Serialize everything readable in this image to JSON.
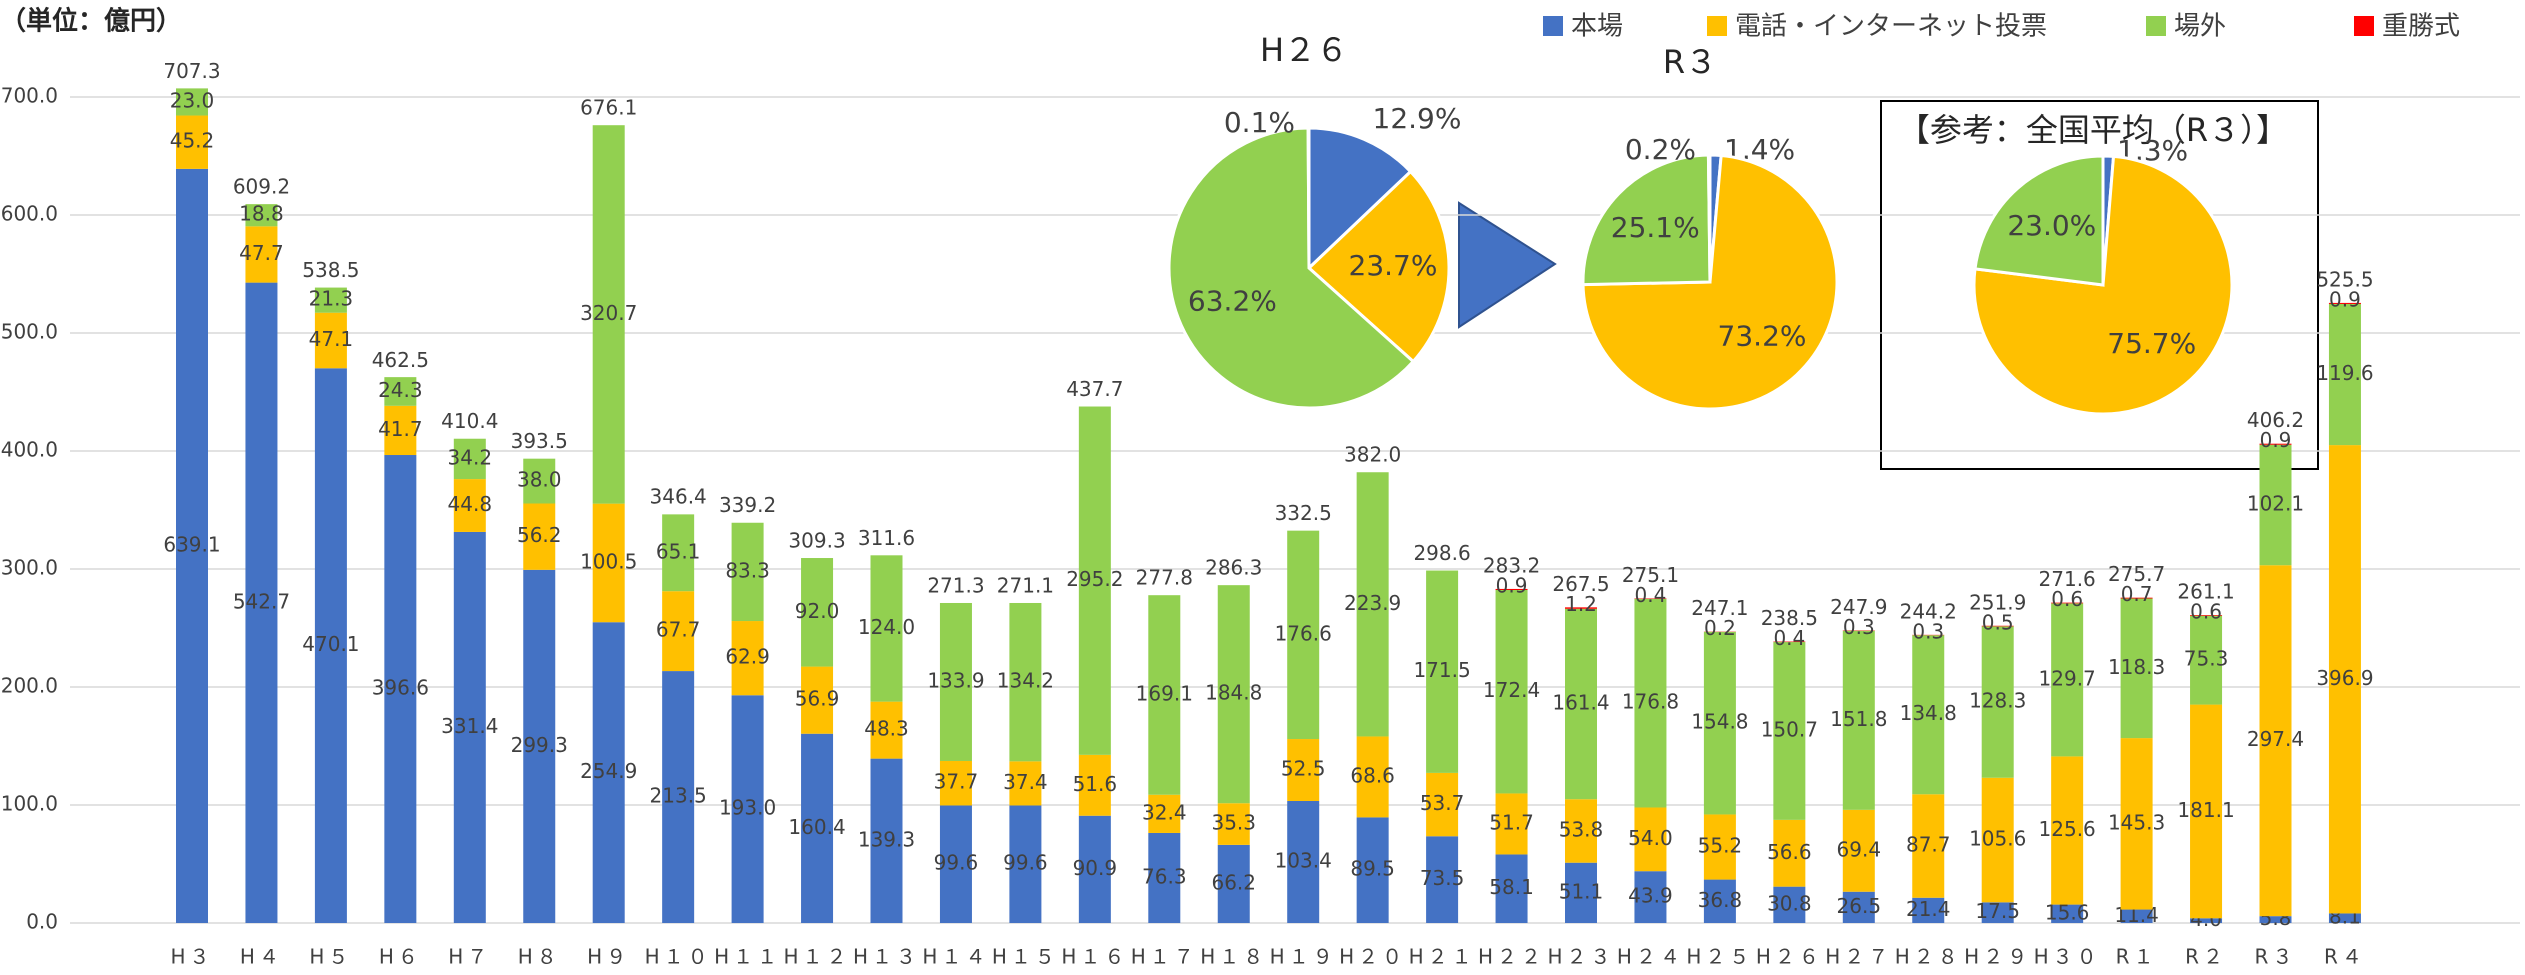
{
  "chart_data": [
    {
      "type": "bar",
      "stacked": true,
      "unit_label": "（単位：億円）",
      "categories": [
        "H３",
        "H４",
        "H５",
        "H６",
        "H７",
        "H８",
        "H９",
        "H１０",
        "H１１",
        "H１２",
        "H１３",
        "H１４",
        "H１５",
        "H１６",
        "H１７",
        "H１８",
        "H１９",
        "H２０",
        "H２１",
        "H２２",
        "H２３",
        "H２４",
        "H２５",
        "H２６",
        "H２７",
        "H２８",
        "H２９",
        "H３０",
        "R１",
        "R２",
        "R３",
        "R４"
      ],
      "series": [
        {
          "name": "本場",
          "color": "#4472c4",
          "values": [
            639.1,
            542.7,
            470.1,
            396.6,
            331.4,
            299.3,
            254.9,
            213.5,
            193.0,
            160.4,
            139.3,
            99.6,
            99.6,
            90.9,
            76.3,
            66.2,
            103.4,
            89.5,
            73.5,
            58.1,
            51.1,
            43.9,
            36.8,
            30.8,
            26.5,
            21.4,
            17.5,
            15.6,
            11.4,
            4.0,
            5.8,
            8.1
          ],
          "value_labels": [
            "639.1",
            "542.7",
            "470.1",
            "396.6",
            "331.4",
            "299.3",
            "254.9",
            "213.5",
            "193.0",
            "160.4",
            "139.3",
            "99.6",
            "99.6",
            "90.9",
            "76.3",
            "66.2",
            "103.4",
            "89.5",
            "73.5",
            "58.1",
            "51.1",
            "43.9",
            "36.8",
            "30.8",
            "26.5",
            "21.4",
            "17.5",
            "15.6",
            "11.4",
            "4.0",
            "5.8",
            "8.1"
          ]
        },
        {
          "name": "電話・インターネット投票",
          "color": "#ffc000",
          "values": [
            45.2,
            47.7,
            47.1,
            41.7,
            44.8,
            56.2,
            100.5,
            67.7,
            62.9,
            56.9,
            48.3,
            37.7,
            37.4,
            51.6,
            32.4,
            35.3,
            52.5,
            68.6,
            53.7,
            51.7,
            53.8,
            54.0,
            55.2,
            56.6,
            69.4,
            87.7,
            105.6,
            125.6,
            145.3,
            181.1,
            297.4,
            396.9
          ],
          "value_labels": [
            "45.2",
            "47.7",
            "47.1",
            "41.7",
            "44.8",
            "56.2",
            "100.5",
            "67.7",
            "62.9",
            "56.9",
            "48.3",
            "37.7",
            "37.4",
            "51.6",
            "32.4",
            "35.3",
            "52.5",
            "68.6",
            "53.7",
            "51.7",
            "53.8",
            "54.0",
            "55.2",
            "56.6",
            "69.4",
            "87.7",
            "105.6",
            "125.6",
            "145.3",
            "181.1",
            "297.4",
            "396.9"
          ]
        },
        {
          "name": "場外",
          "color": "#92d050",
          "values": [
            23.0,
            18.8,
            21.3,
            24.3,
            34.2,
            38.0,
            320.7,
            65.1,
            83.3,
            92.0,
            124.0,
            133.9,
            134.2,
            295.2,
            169.1,
            184.8,
            176.6,
            223.9,
            171.5,
            172.4,
            161.4,
            176.8,
            154.8,
            150.7,
            151.8,
            134.8,
            128.3,
            129.7,
            118.3,
            75.3,
            102.1,
            119.6
          ],
          "value_labels": [
            "23.0",
            "18.8",
            "21.3",
            "24.3",
            "34.2",
            "38.0",
            "320.7",
            "65.1",
            "83.3",
            "92.0",
            "124.0",
            "133.9",
            "134.2",
            "295.2",
            "169.1",
            "184.8",
            "176.6",
            "223.9",
            "171.5",
            "172.4",
            "161.4",
            "176.8",
            "154.8",
            "150.7",
            "151.8",
            "134.8",
            "128.3",
            "129.7",
            "118.3",
            "75.3",
            "102.1",
            "119.6"
          ]
        },
        {
          "name": "重勝式",
          "color": "#ff0000",
          "values": [
            null,
            null,
            null,
            null,
            null,
            null,
            null,
            null,
            null,
            null,
            null,
            null,
            null,
            null,
            null,
            null,
            null,
            null,
            null,
            0.9,
            1.2,
            0.4,
            0.2,
            0.4,
            0.3,
            0.3,
            0.5,
            0.6,
            0.7,
            0.6,
            0.9,
            0.9
          ],
          "value_labels": [
            null,
            null,
            null,
            null,
            null,
            null,
            null,
            null,
            null,
            null,
            null,
            null,
            null,
            null,
            null,
            null,
            null,
            null,
            null,
            "0.9",
            "1.2",
            "0.4",
            "0.2",
            "0.4",
            "0.3",
            "0.3",
            "0.5",
            "0.6",
            "0.7",
            "0.6",
            "0.9",
            "0.9"
          ]
        }
      ],
      "totals": {
        "values": [
          707.3,
          609.2,
          538.5,
          462.5,
          410.4,
          393.5,
          676.1,
          346.4,
          339.2,
          309.3,
          311.6,
          271.3,
          271.1,
          437.7,
          277.8,
          286.3,
          332.5,
          382.0,
          298.6,
          283.2,
          267.5,
          275.1,
          247.1,
          238.5,
          247.9,
          244.2,
          251.9,
          271.6,
          275.7,
          261.1,
          406.2,
          525.5
        ],
        "value_labels": [
          "707.3",
          "609.2",
          "538.5",
          "462.5",
          "410.4",
          "393.5",
          "676.1",
          "346.4",
          "339.2",
          "309.3",
          "311.6",
          "271.3",
          "271.1",
          "437.7",
          "277.8",
          "286.3",
          "332.5",
          "382.0",
          "298.6",
          "283.2",
          "267.5",
          "275.1",
          "247.1",
          "238.5",
          "247.9",
          "244.2",
          "251.9",
          "271.6",
          "275.7",
          "261.1",
          "406.2",
          "525.5"
        ]
      },
      "ylim": [
        0,
        750
      ],
      "yticks": [
        {
          "value": 0,
          "label": "0.0"
        },
        {
          "value": 100,
          "label": "100.0"
        },
        {
          "value": 200,
          "label": "200.0"
        },
        {
          "value": 300,
          "label": "300.0"
        },
        {
          "value": 400,
          "label": "400.0"
        },
        {
          "value": 500,
          "label": "500.0"
        },
        {
          "value": 600,
          "label": "600.0"
        },
        {
          "value": 700,
          "label": "700.0"
        }
      ],
      "grid": true,
      "legend": "top-right"
    },
    {
      "type": "pie",
      "title": "H２６",
      "values": [
        12.9,
        23.7,
        63.2,
        0.1
      ],
      "value_labels": [
        "12.9%",
        "23.7%",
        "63.2%",
        "0.1%"
      ],
      "colors": [
        "#4472c4",
        "#ffc000",
        "#92d050",
        "#ff0000"
      ]
    },
    {
      "type": "pie",
      "title": "R３",
      "values": [
        1.4,
        73.2,
        25.1,
        0.2
      ],
      "value_labels": [
        "1.4%",
        "73.2%",
        "25.1%",
        "0.2%"
      ],
      "colors": [
        "#4472c4",
        "#ffc000",
        "#92d050",
        "#ff0000"
      ]
    },
    {
      "type": "pie",
      "title": "【参考：全国平均（R３）】",
      "values": [
        1.3,
        75.7,
        23.0
      ],
      "value_labels": [
        "1.3%",
        "75.7%",
        "23.0%"
      ],
      "colors": [
        "#4472c4",
        "#ffc000",
        "#92d050"
      ]
    }
  ]
}
